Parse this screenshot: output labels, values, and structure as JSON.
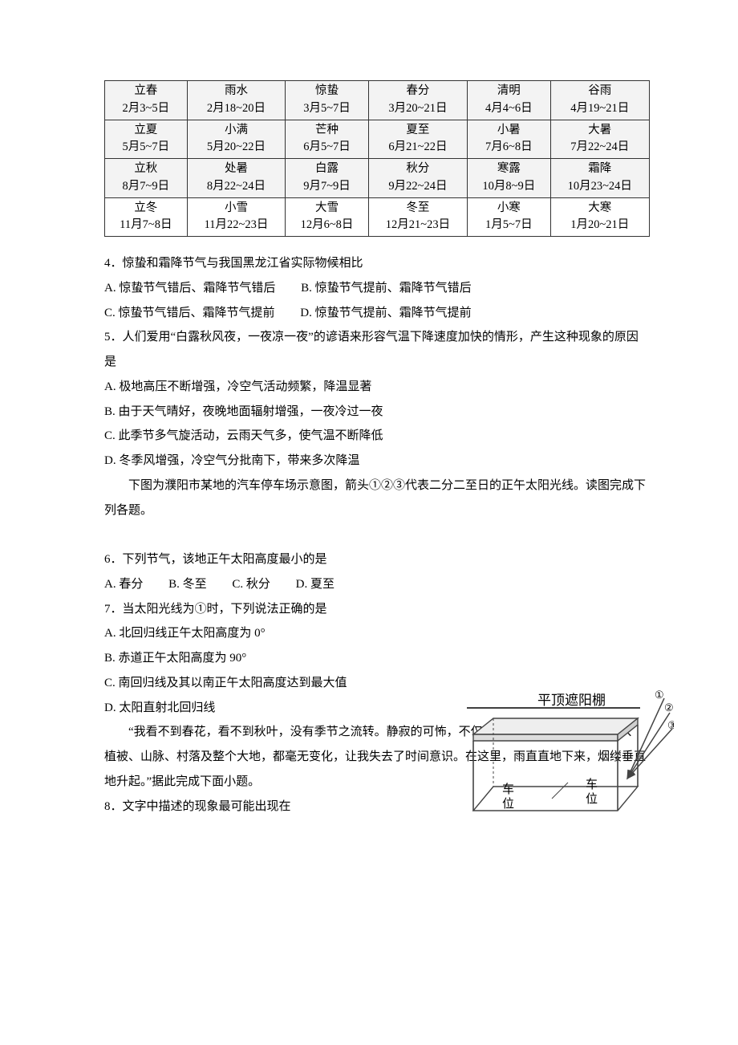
{
  "table": {
    "rows": [
      [
        {
          "name": "立春",
          "date": "2月3~5日"
        },
        {
          "name": "雨水",
          "date": "2月18~20日"
        },
        {
          "name": "惊蛰",
          "date": "3月5~7日"
        },
        {
          "name": "春分",
          "date": "3月20~21日"
        },
        {
          "name": "清明",
          "date": "4月4~6日"
        },
        {
          "name": "谷雨",
          "date": "4月19~21日"
        }
      ],
      [
        {
          "name": "立夏",
          "date": "5月5~7日"
        },
        {
          "name": "小满",
          "date": "5月20~22日"
        },
        {
          "name": "芒种",
          "date": "6月5~7日"
        },
        {
          "name": "夏至",
          "date": "6月21~22日"
        },
        {
          "name": "小暑",
          "date": "7月6~8日"
        },
        {
          "name": "大暑",
          "date": "7月22~24日"
        }
      ],
      [
        {
          "name": "立秋",
          "date": "8月7~9日"
        },
        {
          "name": "处暑",
          "date": "8月22~24日"
        },
        {
          "name": "白露",
          "date": "9月7~9日"
        },
        {
          "name": "秋分",
          "date": "9月22~24日"
        },
        {
          "name": "寒露",
          "date": "10月8~9日"
        },
        {
          "name": "霜降",
          "date": "10月23~24日"
        }
      ],
      [
        {
          "name": "立冬",
          "date": "11月7~8日"
        },
        {
          "name": "小雪",
          "date": "11月22~23日"
        },
        {
          "name": "大雪",
          "date": "12月6~8日"
        },
        {
          "name": "冬至",
          "date": "12月21~23日"
        },
        {
          "name": "小寒",
          "date": "1月5~7日"
        },
        {
          "name": "大寒",
          "date": "1月20~21日"
        }
      ]
    ],
    "shaded_rows": [
      0,
      1,
      2
    ]
  },
  "q4": {
    "stem": "4．惊蛰和霜降节气与我国黑龙江省实际物候相比",
    "optA": "A. 惊蛰节气错后、霜降节气错后",
    "optB": "B. 惊蛰节气提前、霜降节气错后",
    "optC": "C. 惊蛰节气错后、霜降节气提前",
    "optD": "D. 惊蛰节气提前、霜降节气提前"
  },
  "q5": {
    "stem": "5．人们爱用“白露秋风夜，一夜凉一夜”的谚语来形容气温下降速度加快的情形，产生这种现象的原因是",
    "optA": "A. 极地高压不断增强，冷空气活动频繁，降温显著",
    "optB": "B. 由于天气晴好，夜晚地面辐射增强，一夜冷过一夜",
    "optC": "C. 此季节多气旋活动，云雨天气多，使气温不断降低",
    "optD": "D. 冬季风增强，冷空气分批南下，带来多次降温"
  },
  "passage1": "下图为濮阳市某地的汽车停车场示意图，箭头①②③代表二分二至日的正午太阳光线。读图完成下列各题。",
  "q6": {
    "stem": "6．下列节气，该地正午太阳高度最小的是",
    "optA": "A. 春分",
    "optB": "B. 冬至",
    "optC": "C. 秋分",
    "optD": "D. 夏至"
  },
  "q7": {
    "stem": "7．当太阳光线为①时，下列说法正确的是",
    "optA": "A. 北回归线正午太阳高度为 0°",
    "optB": "B. 赤道正午太阳高度为 90°",
    "optC": "C. 南回归线及其以南正午太阳高度达到最大值",
    "optD": "D. 太阳直射北回归线"
  },
  "passage2": "“我看不到春花，看不到秋叶，没有季节之流转。静寂的可怖，不仅仅是声音的静寂，而且色彩、植被、山脉、村落及整个大地，都毫无变化，让我失去了时间意识。在这里，雨直直地下来，烟缕垂直地升起。”据此完成下面小题。",
  "q8": {
    "stem": "8．文字中描述的现象最可能出现在"
  },
  "figure": {
    "title": "平顶遮阳棚",
    "slot1": "车位",
    "slot2": "车位",
    "mark1": "①",
    "mark2": "②",
    "mark3": "③",
    "colors": {
      "line": "#444444",
      "fill_top": "#eeeeee",
      "fill_side": "#dddddd",
      "text": "#000000"
    }
  }
}
